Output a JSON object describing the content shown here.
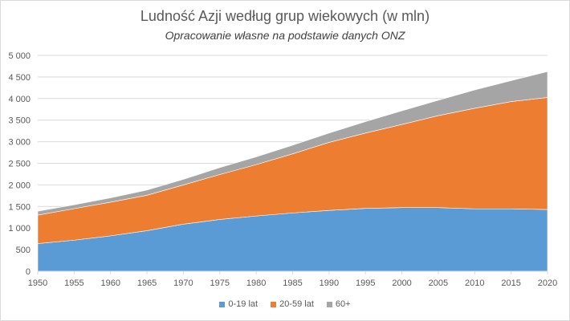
{
  "chart_data": {
    "type": "area",
    "stacked": true,
    "title": "Ludność Azji według grup wiekowych (w mln)",
    "subtitle": "Opracowanie własne na podstawie danych ONZ",
    "xlabel": "",
    "ylabel": "",
    "x": [
      1950,
      1955,
      1960,
      1965,
      1970,
      1975,
      1980,
      1985,
      1990,
      1995,
      2000,
      2005,
      2010,
      2015,
      2020
    ],
    "ylim": [
      0,
      5000
    ],
    "yticks": [
      "0",
      "500",
      "1 000",
      "1 500",
      "2 000",
      "2 500",
      "3 000",
      "3 500",
      "4 000",
      "4 500",
      "5 000"
    ],
    "grid": true,
    "legend_position": "bottom",
    "series": [
      {
        "name": "0-19 lat",
        "color": "#5b9bd5",
        "values": [
          640,
          720,
          820,
          940,
          1090,
          1200,
          1280,
          1350,
          1410,
          1455,
          1475,
          1475,
          1445,
          1445,
          1430
        ]
      },
      {
        "name": "20-59 lat",
        "color": "#ed7d31",
        "values": [
          660,
          730,
          780,
          820,
          910,
          1040,
          1190,
          1370,
          1575,
          1745,
          1925,
          2130,
          2330,
          2485,
          2595
        ]
      },
      {
        "name": "60+",
        "color": "#a5a5a5",
        "values": [
          90,
          90,
          100,
          120,
          130,
          160,
          180,
          200,
          215,
          265,
          315,
          355,
          425,
          485,
          600
        ]
      }
    ]
  }
}
